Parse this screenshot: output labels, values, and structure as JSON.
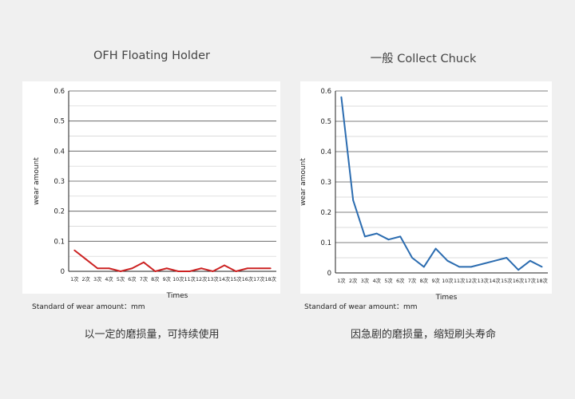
{
  "chart_data": [
    {
      "type": "line",
      "title": "OFH Floating Holder",
      "xlabel": "Times",
      "ylabel": "wear amount",
      "ylim": [
        0,
        0.6
      ],
      "yticks": [
        "0",
        "0.1",
        "0.2",
        "0.3",
        "0.4",
        "0.5",
        "0.6"
      ],
      "categories": [
        "1次",
        "2次",
        "3次",
        "4次",
        "5次",
        "6次",
        "7次",
        "8次",
        "9次",
        "10次",
        "11次",
        "12次",
        "13次",
        "14次",
        "15次",
        "16次",
        "17次",
        "18次"
      ],
      "series": [
        {
          "values": [
            0.07,
            0.04,
            0.01,
            0.01,
            0.0,
            0.01,
            0.03,
            0.0,
            0.01,
            0.0,
            0.0,
            0.01,
            0.0,
            0.02,
            0.0,
            0.01,
            0.01,
            0.01
          ],
          "color": "#cc2222"
        }
      ],
      "unit_note": "Standard of wear amount：mm",
      "caption": "以一定的磨损量，可持续使用",
      "grid": true
    },
    {
      "type": "line",
      "title": "一般 Collect Chuck",
      "xlabel": "Times",
      "ylabel": "wear amount",
      "ylim": [
        0,
        0.6
      ],
      "yticks": [
        "0",
        "0.1",
        "0.2",
        "0.3",
        "0.4",
        "0.5",
        "0.6"
      ],
      "categories": [
        "1次",
        "2次",
        "3次",
        "4次",
        "5次",
        "6次",
        "7次",
        "8次",
        "9次",
        "10次",
        "11次",
        "12次",
        "13次",
        "14次",
        "15次",
        "16次",
        "17次",
        "18次"
      ],
      "series": [
        {
          "values": [
            0.58,
            0.24,
            0.12,
            0.13,
            0.11,
            0.12,
            0.05,
            0.02,
            0.08,
            0.04,
            0.02,
            0.02,
            0.03,
            0.04,
            0.05,
            0.01,
            0.04,
            0.02
          ],
          "color": "#2b6cb0"
        }
      ],
      "unit_note": "Standard of wear amount：mm",
      "caption": "因急剧的磨损量，缩短刷头寿命",
      "grid": true
    }
  ]
}
